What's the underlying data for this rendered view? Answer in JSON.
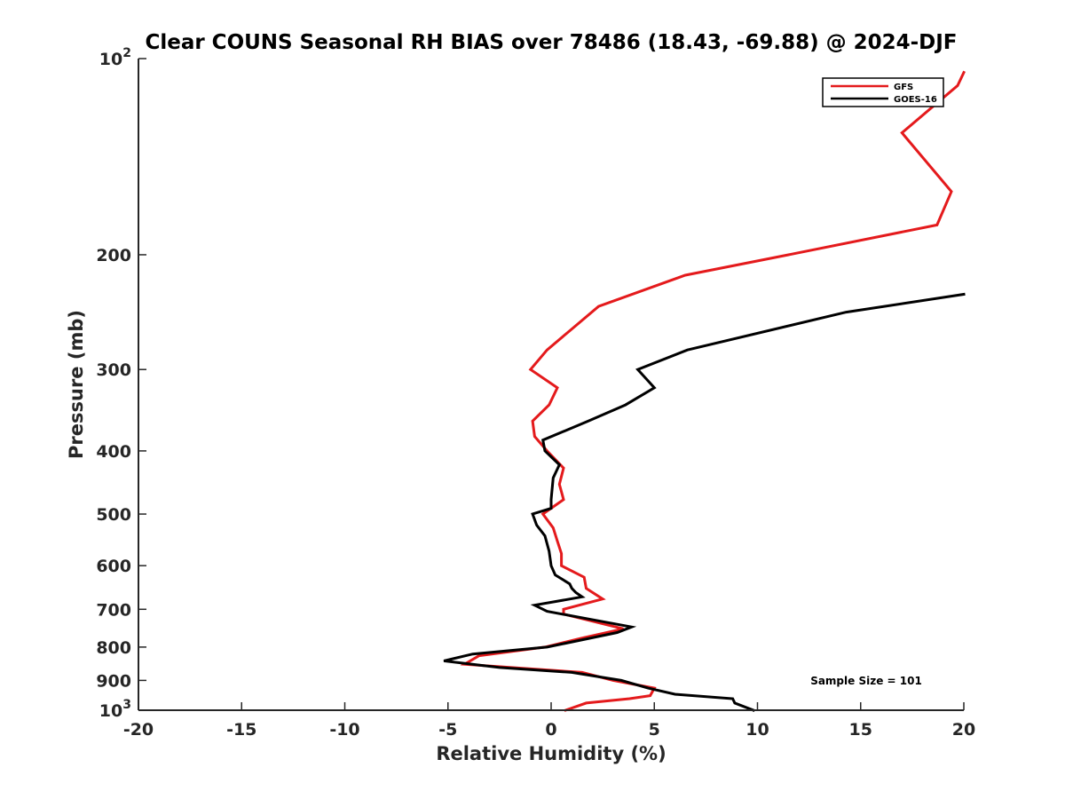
{
  "chart_data": {
    "type": "line",
    "title": "Clear COUNS Seasonal RH BIAS over 78486 (18.43, -69.88) @ 2024-DJF",
    "xlabel": "Relative Humidity (%)",
    "ylabel": "Pressure (mb)",
    "xlim": [
      -20,
      20
    ],
    "ylim": [
      1000,
      100
    ],
    "y_scale": "log",
    "y_reversed": true,
    "grid": false,
    "legend_position": "top-right",
    "x_ticks": [
      -20,
      -15,
      -10,
      -5,
      0,
      5,
      10,
      15,
      20
    ],
    "x_tick_labels": [
      "-20",
      "-15",
      "-10",
      "-5",
      "0",
      "5",
      "10",
      "15",
      "20"
    ],
    "y_ticks": [
      100,
      200,
      300,
      400,
      500,
      600,
      700,
      800,
      900,
      1000
    ],
    "y_tick_labels": [
      {
        "base": "10",
        "exp": "2"
      },
      {
        "base": "200"
      },
      {
        "base": "300"
      },
      {
        "base": "400"
      },
      {
        "base": "500"
      },
      {
        "base": "600"
      },
      {
        "base": "700"
      },
      {
        "base": "800"
      },
      {
        "base": "900"
      },
      {
        "base": "10",
        "exp": "3"
      }
    ],
    "annotation": "Sample Size = 101",
    "series": [
      {
        "name": "GFS",
        "color": "#e41a1c",
        "points": [
          {
            "rh": 20.0,
            "p": 105
          },
          {
            "rh": 19.7,
            "p": 110
          },
          {
            "rh": 17.0,
            "p": 130
          },
          {
            "rh": 19.4,
            "p": 160
          },
          {
            "rh": 18.7,
            "p": 180
          },
          {
            "rh": 11.5,
            "p": 200
          },
          {
            "rh": 6.5,
            "p": 215
          },
          {
            "rh": 2.3,
            "p": 240
          },
          {
            "rh": 1.0,
            "p": 260
          },
          {
            "rh": -0.2,
            "p": 280
          },
          {
            "rh": -1.0,
            "p": 300
          },
          {
            "rh": 0.3,
            "p": 320
          },
          {
            "rh": -0.1,
            "p": 340
          },
          {
            "rh": -0.9,
            "p": 360
          },
          {
            "rh": -0.8,
            "p": 380
          },
          {
            "rh": -0.2,
            "p": 400
          },
          {
            "rh": 0.6,
            "p": 425
          },
          {
            "rh": 0.4,
            "p": 450
          },
          {
            "rh": 0.6,
            "p": 475
          },
          {
            "rh": -0.4,
            "p": 500
          },
          {
            "rh": 0.1,
            "p": 525
          },
          {
            "rh": 0.3,
            "p": 550
          },
          {
            "rh": 0.5,
            "p": 575
          },
          {
            "rh": 0.5,
            "p": 600
          },
          {
            "rh": 1.6,
            "p": 625
          },
          {
            "rh": 1.7,
            "p": 650
          },
          {
            "rh": 2.5,
            "p": 675
          },
          {
            "rh": 0.6,
            "p": 700
          },
          {
            "rh": 0.6,
            "p": 712
          },
          {
            "rh": 3.5,
            "p": 750
          },
          {
            "rh": 1.5,
            "p": 775
          },
          {
            "rh": -0.3,
            "p": 800
          },
          {
            "rh": -3.5,
            "p": 825
          },
          {
            "rh": -4.2,
            "p": 850
          },
          {
            "rh": 1.5,
            "p": 875
          },
          {
            "rh": 3.0,
            "p": 900
          },
          {
            "rh": 5.0,
            "p": 925
          },
          {
            "rh": 4.8,
            "p": 950
          },
          {
            "rh": 3.8,
            "p": 960
          },
          {
            "rh": 1.7,
            "p": 975
          },
          {
            "rh": 0.7,
            "p": 1000
          }
        ]
      },
      {
        "name": "GOES-16",
        "color": "#000000",
        "points": [
          {
            "rh": 20.0,
            "p": 230
          },
          {
            "rh": 14.3,
            "p": 245
          },
          {
            "rh": 6.6,
            "p": 280
          },
          {
            "rh": 4.2,
            "p": 300
          },
          {
            "rh": 5.0,
            "p": 320
          },
          {
            "rh": 3.6,
            "p": 340
          },
          {
            "rh": 1.8,
            "p": 360
          },
          {
            "rh": -0.4,
            "p": 385
          },
          {
            "rh": -0.3,
            "p": 400
          },
          {
            "rh": 0.4,
            "p": 420
          },
          {
            "rh": 0.1,
            "p": 440
          },
          {
            "rh": 0.0,
            "p": 475
          },
          {
            "rh": 0.0,
            "p": 490
          },
          {
            "rh": -0.9,
            "p": 500
          },
          {
            "rh": -0.7,
            "p": 520
          },
          {
            "rh": -0.3,
            "p": 540
          },
          {
            "rh": -0.1,
            "p": 570
          },
          {
            "rh": 0.0,
            "p": 600
          },
          {
            "rh": 0.2,
            "p": 620
          },
          {
            "rh": 0.9,
            "p": 640
          },
          {
            "rh": 1.0,
            "p": 650
          },
          {
            "rh": 1.2,
            "p": 660
          },
          {
            "rh": 1.5,
            "p": 670
          },
          {
            "rh": -0.8,
            "p": 690
          },
          {
            "rh": -0.2,
            "p": 705
          },
          {
            "rh": 3.9,
            "p": 745
          },
          {
            "rh": 3.2,
            "p": 760
          },
          {
            "rh": -0.2,
            "p": 800
          },
          {
            "rh": -3.8,
            "p": 820
          },
          {
            "rh": -5.2,
            "p": 840
          },
          {
            "rh": -2.5,
            "p": 860
          },
          {
            "rh": 1.0,
            "p": 875
          },
          {
            "rh": 3.4,
            "p": 900
          },
          {
            "rh": 4.7,
            "p": 925
          },
          {
            "rh": 6.0,
            "p": 945
          },
          {
            "rh": 8.8,
            "p": 960
          },
          {
            "rh": 8.9,
            "p": 975
          },
          {
            "rh": 9.8,
            "p": 1000
          }
        ]
      }
    ]
  }
}
